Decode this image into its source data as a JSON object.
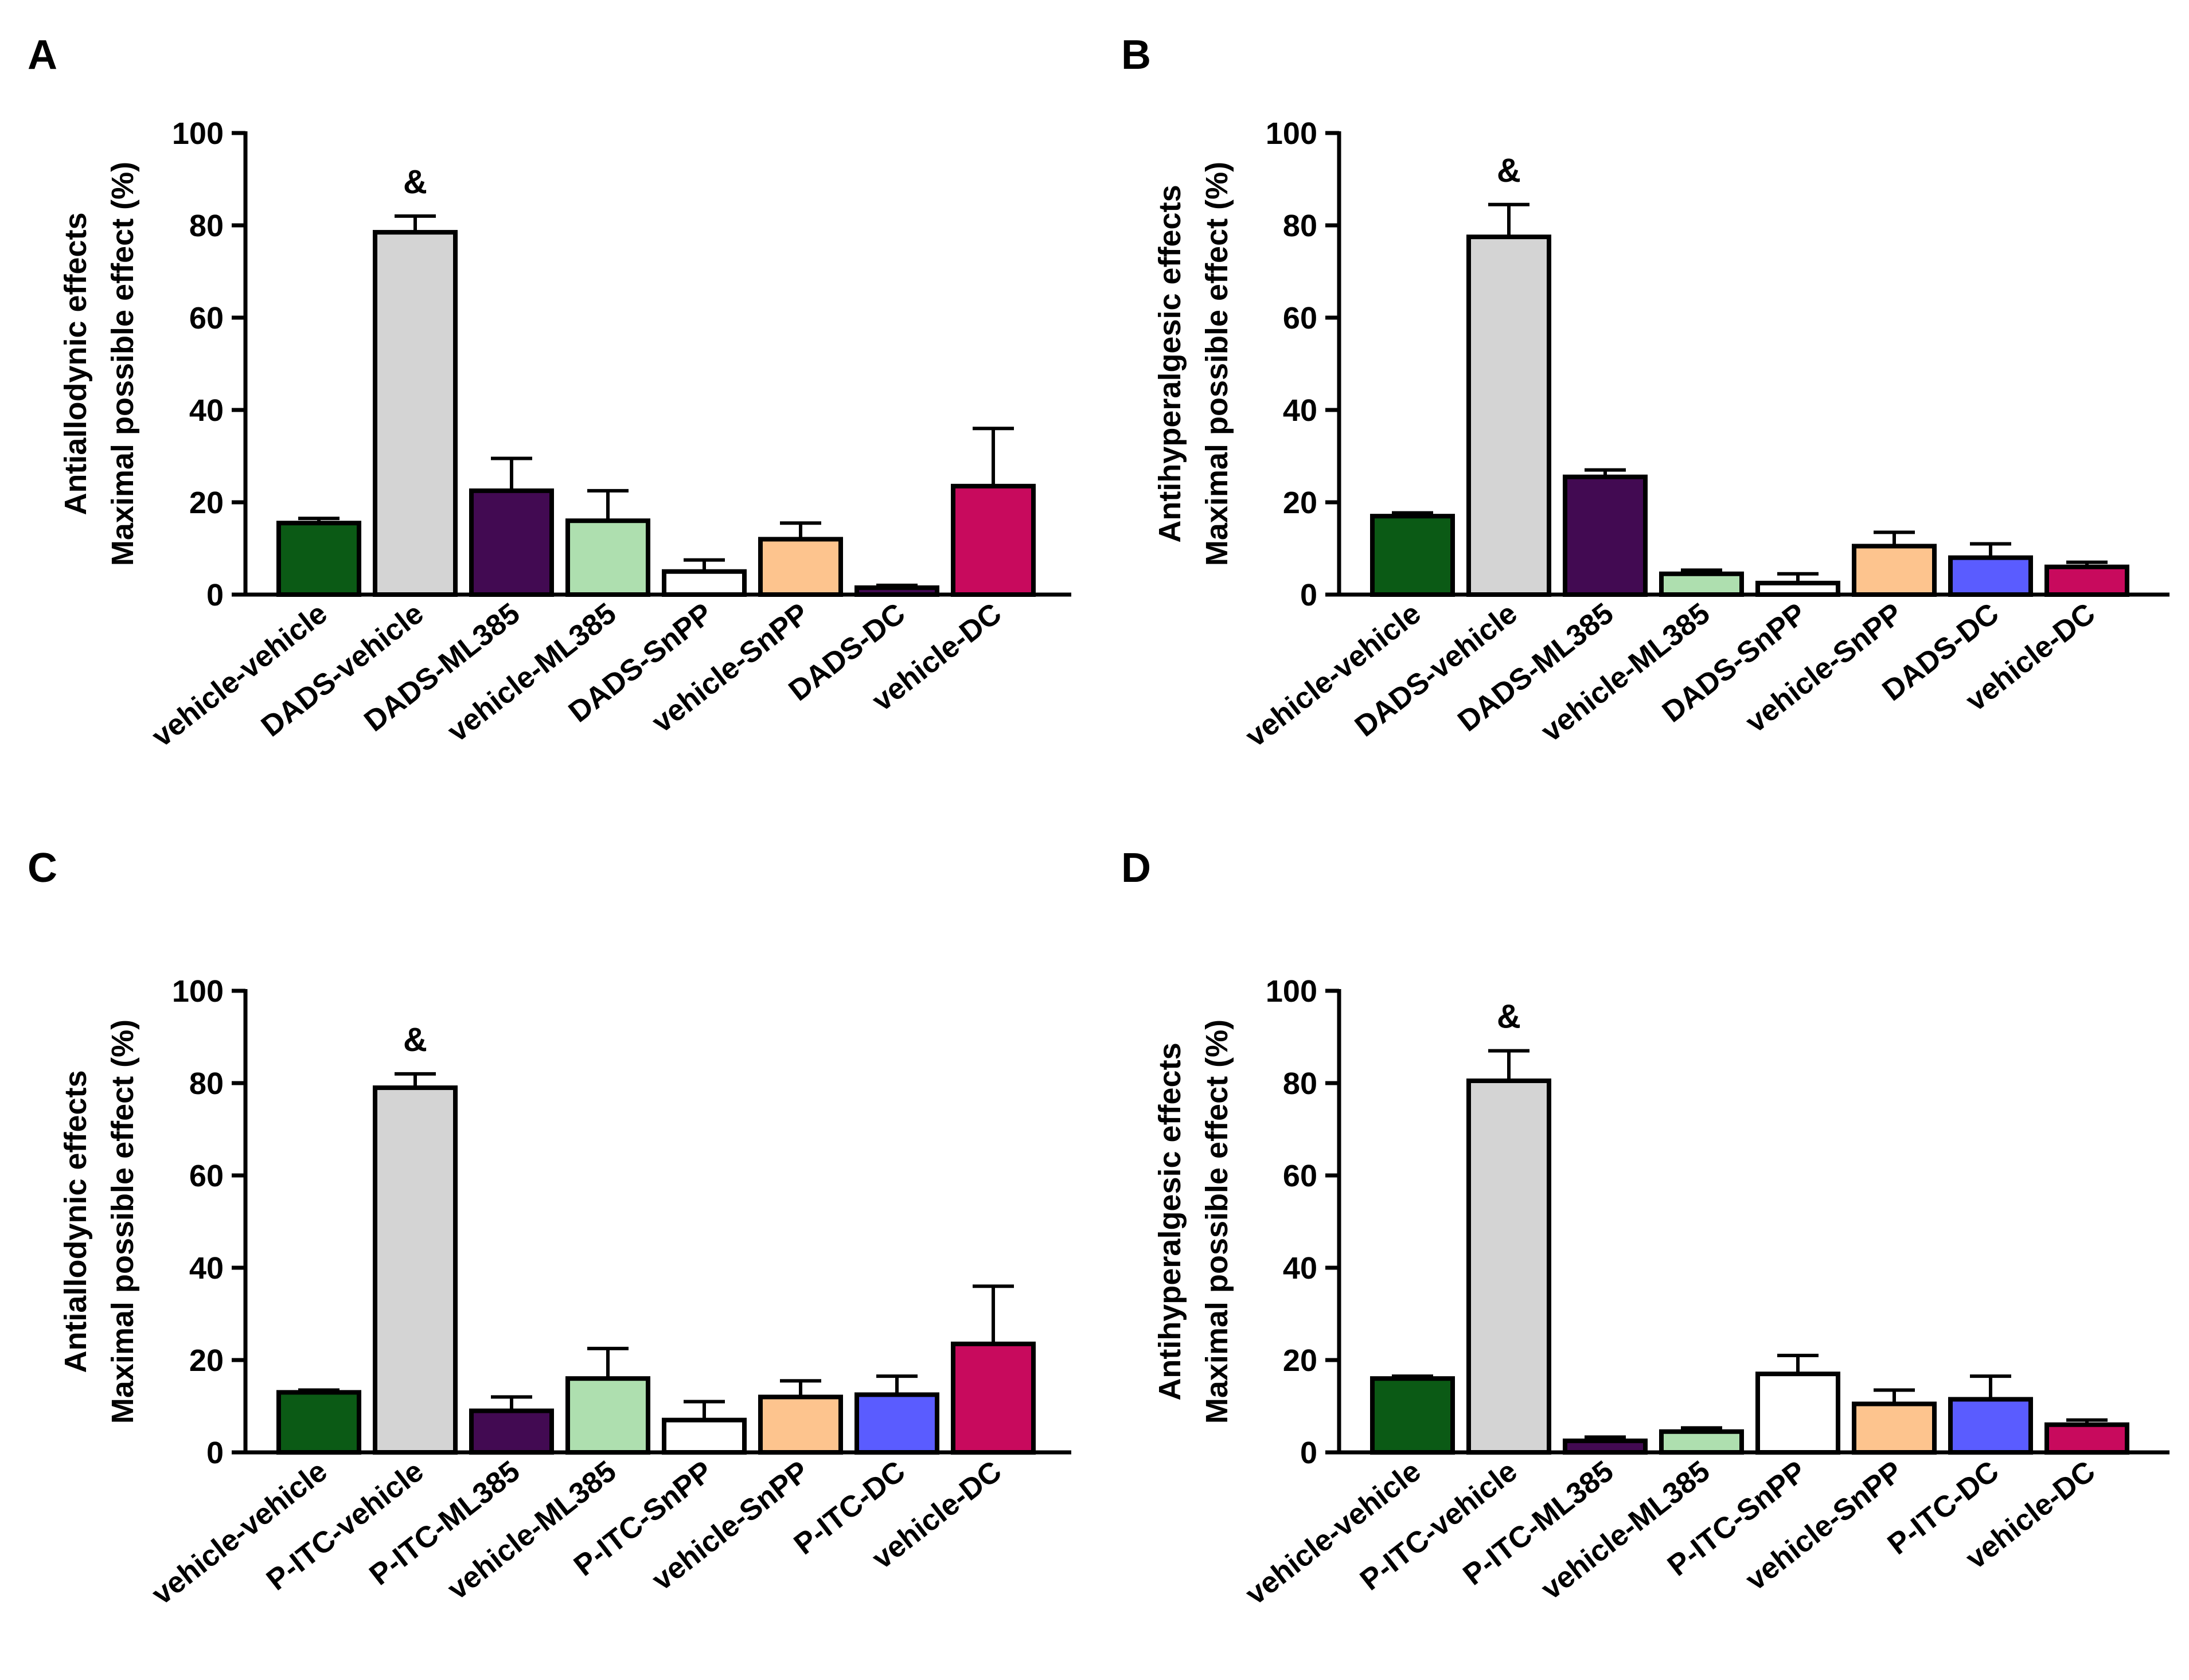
{
  "colors": {
    "axis": "#000000",
    "bar_border": "#000000",
    "dark_green": "#0B5A15",
    "light_gray": "#D4D4D4",
    "dark_purple": "#420A52",
    "light_green": "#AEDFAF",
    "white": "#FFFFFF",
    "peach": "#FDC48E",
    "blue": "#5A5CFF",
    "magenta": "#C80A5D"
  },
  "chart_data": [
    {
      "type": "bar",
      "panel": "A",
      "ylabel_line1": "Antiallodynic effects",
      "ylabel_line2": "Maximal possible effect (%)",
      "ylim": [
        0,
        100
      ],
      "yticks": [
        "0",
        "20",
        "40",
        "60",
        "80",
        "100"
      ],
      "categories": [
        "vehicle-vehicle",
        "DADS-vehicle",
        "DADS-ML385",
        "vehicle-ML385",
        "DADS-SnPP",
        "vehicle-SnPP",
        "DADS-DC",
        "vehicle-DC"
      ],
      "values": [
        15.5,
        78.5,
        22.5,
        16,
        5,
        12,
        1.5,
        23.5
      ],
      "errors": [
        1,
        3.5,
        7,
        6.5,
        2.5,
        3.5,
        0.5,
        12.5
      ],
      "colors": [
        "#0B5A15",
        "#D4D4D4",
        "#420A52",
        "#AEDFAF",
        "#FFFFFF",
        "#FDC48E",
        "#420A52",
        "#C80A5D"
      ],
      "annotation": {
        "index": 1,
        "text": "&"
      }
    },
    {
      "type": "bar",
      "panel": "B",
      "ylabel_line1": "Antihyperalgesic effects",
      "ylabel_line2": "Maximal possible effect (%)",
      "ylim": [
        0,
        100
      ],
      "yticks": [
        "0",
        "20",
        "40",
        "60",
        "80",
        "100"
      ],
      "categories": [
        "vehicle-vehicle",
        "DADS-vehicle",
        "DADS-ML385",
        "vehicle-ML385",
        "DADS-SnPP",
        "vehicle-SnPP",
        "DADS-DC",
        "vehicle-DC"
      ],
      "values": [
        17,
        77.5,
        25.5,
        4.5,
        2.5,
        10.5,
        8,
        6
      ],
      "errors": [
        0.7,
        7,
        1.5,
        0.8,
        2,
        3,
        3,
        1
      ],
      "colors": [
        "#0B5A15",
        "#D4D4D4",
        "#420A52",
        "#AEDFAF",
        "#FFFFFF",
        "#FDC48E",
        "#5A5CFF",
        "#C80A5D"
      ],
      "annotation": {
        "index": 1,
        "text": "&"
      }
    },
    {
      "type": "bar",
      "panel": "C",
      "ylabel_line1": "Antiallodynic effects",
      "ylabel_line2": "Maximal possible effect (%)",
      "ylim": [
        0,
        100
      ],
      "yticks": [
        "0",
        "20",
        "40",
        "60",
        "80",
        "100"
      ],
      "categories": [
        "vehicle-vehicle",
        "P-ITC-vehicle",
        "P-ITC-ML385",
        "vehicle-ML385",
        "P-ITC-SnPP",
        "vehicle-SnPP",
        "P-ITC-DC",
        "vehicle-DC"
      ],
      "values": [
        13,
        79,
        9,
        16,
        7,
        12,
        12.5,
        23.5
      ],
      "errors": [
        0.5,
        3,
        3,
        6.5,
        4,
        3.5,
        4,
        12.5
      ],
      "colors": [
        "#0B5A15",
        "#D4D4D4",
        "#420A52",
        "#AEDFAF",
        "#FFFFFF",
        "#FDC48E",
        "#5A5CFF",
        "#C80A5D"
      ],
      "annotation": {
        "index": 1,
        "text": "&"
      }
    },
    {
      "type": "bar",
      "panel": "D",
      "ylabel_line1": "Antihyperalgesic effects",
      "ylabel_line2": "Maximal possible effect (%)",
      "ylim": [
        0,
        100
      ],
      "yticks": [
        "0",
        "20",
        "40",
        "60",
        "80",
        "100"
      ],
      "categories": [
        "vehicle-vehicle",
        "P-ITC-vehicle",
        "P-ITC-ML385",
        "vehicle-ML385",
        "P-ITC-SnPP",
        "vehicle-SnPP",
        "P-ITC-DC",
        "vehicle-DC"
      ],
      "values": [
        16,
        80.5,
        2.5,
        4.5,
        17,
        10.5,
        11.5,
        6
      ],
      "errors": [
        0.5,
        6.5,
        0.8,
        0.8,
        4,
        3,
        5,
        1
      ],
      "colors": [
        "#0B5A15",
        "#D4D4D4",
        "#420A52",
        "#AEDFAF",
        "#FFFFFF",
        "#FDC48E",
        "#5A5CFF",
        "#C80A5D"
      ],
      "annotation": {
        "index": 1,
        "text": "&"
      }
    }
  ]
}
